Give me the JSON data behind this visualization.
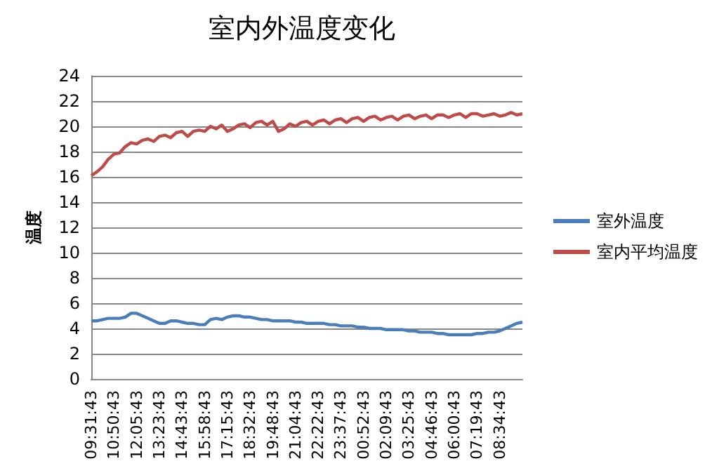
{
  "chart_data": {
    "type": "line",
    "title": "室内外温度变化",
    "ylabel": "温度",
    "categories": [
      "09:31:43",
      null,
      null,
      null,
      "10:50:43",
      null,
      null,
      null,
      "12:05:43",
      null,
      null,
      null,
      "13:23:43",
      null,
      null,
      null,
      "14:43:43",
      null,
      null,
      null,
      "15:58:43",
      null,
      null,
      null,
      "17:15:43",
      null,
      null,
      null,
      "18:32:43",
      null,
      null,
      null,
      "19:48:43",
      null,
      null,
      null,
      "21:04:43",
      null,
      null,
      null,
      "22:22:43",
      null,
      null,
      null,
      "23:37:43",
      null,
      null,
      null,
      "00:52:43",
      null,
      null,
      null,
      "02:09:43",
      null,
      null,
      null,
      "03:25:43",
      null,
      null,
      null,
      "04:46:43",
      null,
      null,
      null,
      "06:00:43",
      null,
      null,
      null,
      "07:19:43",
      null,
      null,
      null,
      "08:34:43",
      null,
      null,
      null,
      null
    ],
    "series": [
      {
        "name": "室外温度",
        "color": "#4a7ebb",
        "values": [
          4.6,
          4.6,
          4.7,
          4.8,
          4.8,
          4.8,
          4.9,
          5.2,
          5.2,
          5.0,
          4.8,
          4.6,
          4.4,
          4.4,
          4.6,
          4.6,
          4.5,
          4.4,
          4.4,
          4.3,
          4.3,
          4.7,
          4.8,
          4.7,
          4.9,
          5.0,
          5.0,
          4.9,
          4.9,
          4.8,
          4.7,
          4.7,
          4.6,
          4.6,
          4.6,
          4.6,
          4.5,
          4.5,
          4.4,
          4.4,
          4.4,
          4.4,
          4.3,
          4.3,
          4.2,
          4.2,
          4.2,
          4.1,
          4.1,
          4.0,
          4.0,
          4.0,
          3.9,
          3.9,
          3.9,
          3.9,
          3.8,
          3.8,
          3.7,
          3.7,
          3.7,
          3.6,
          3.6,
          3.5,
          3.5,
          3.5,
          3.5,
          3.5,
          3.6,
          3.6,
          3.7,
          3.7,
          3.8,
          4.0,
          4.2,
          4.4,
          4.5
        ]
      },
      {
        "name": "室内平均温度",
        "color": "#be4b48",
        "values": [
          16.1,
          16.4,
          16.8,
          17.4,
          17.8,
          17.9,
          18.4,
          18.7,
          18.6,
          18.9,
          19.0,
          18.8,
          19.2,
          19.3,
          19.1,
          19.5,
          19.6,
          19.2,
          19.6,
          19.7,
          19.6,
          20.0,
          19.8,
          20.1,
          19.6,
          19.8,
          20.1,
          20.2,
          19.9,
          20.3,
          20.4,
          20.1,
          20.4,
          19.6,
          19.8,
          20.2,
          20.0,
          20.3,
          20.4,
          20.1,
          20.4,
          20.5,
          20.2,
          20.5,
          20.6,
          20.3,
          20.6,
          20.7,
          20.4,
          20.7,
          20.8,
          20.5,
          20.7,
          20.8,
          20.5,
          20.8,
          20.9,
          20.6,
          20.8,
          20.9,
          20.6,
          20.9,
          20.9,
          20.7,
          20.9,
          21.0,
          20.7,
          21.0,
          21.0,
          20.8,
          20.9,
          21.0,
          20.8,
          20.9,
          21.1,
          20.9,
          21.0
        ]
      }
    ],
    "ylim": [
      0,
      24
    ],
    "yticks": [
      0,
      2,
      4,
      6,
      8,
      10,
      12,
      14,
      16,
      18,
      20,
      22,
      24
    ],
    "grid": "y",
    "legend": "right",
    "marker": "none",
    "line_style": "solid"
  }
}
